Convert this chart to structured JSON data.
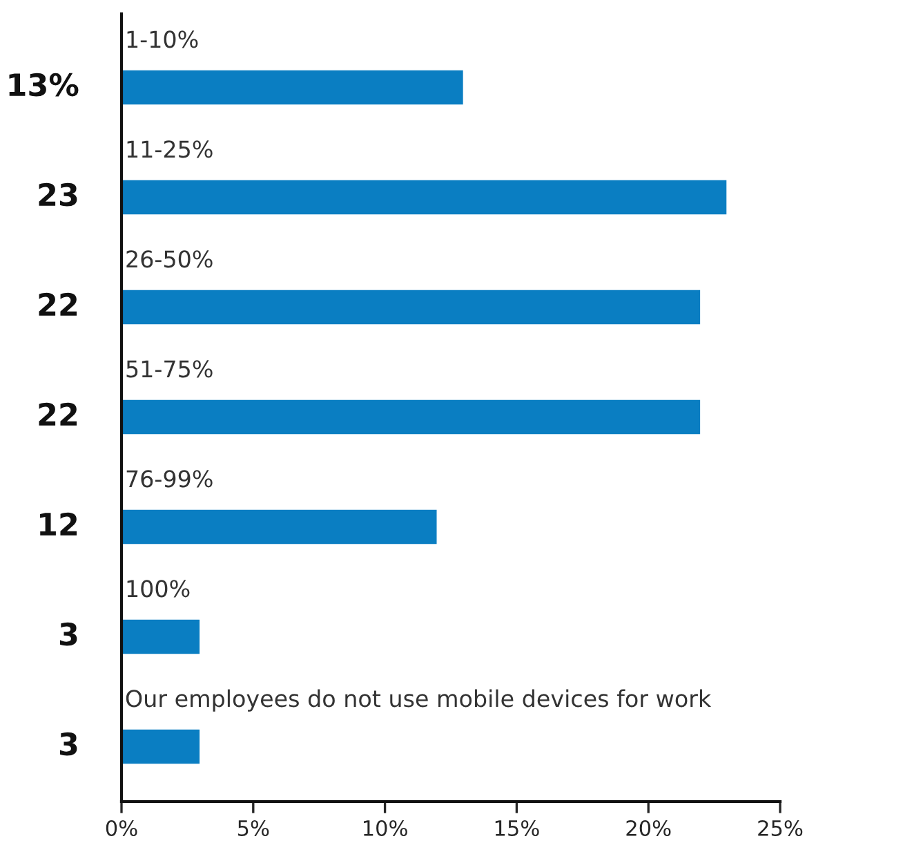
{
  "chart_data": {
    "type": "bar",
    "orientation": "horizontal",
    "categories": [
      "1-10%",
      "11-25%",
      "26-50%",
      "51-75%",
      "76-99%",
      "100%",
      "Our employees do not use mobile devices for work"
    ],
    "values": [
      13,
      23,
      22,
      22,
      12,
      3,
      3
    ],
    "value_labels": [
      "13%",
      "23",
      "22",
      "22",
      "12",
      "3",
      "3"
    ],
    "color": "#0a7ec2",
    "xlim": [
      0,
      25
    ],
    "xticks": [
      {
        "value": 0,
        "label": "0%"
      },
      {
        "value": 5,
        "label": "5%"
      },
      {
        "value": 10,
        "label": "10%"
      },
      {
        "value": 15,
        "label": "15%"
      },
      {
        "value": 20,
        "label": "20%"
      },
      {
        "value": 25,
        "label": "25%"
      }
    ],
    "grid": false,
    "legend": false
  }
}
